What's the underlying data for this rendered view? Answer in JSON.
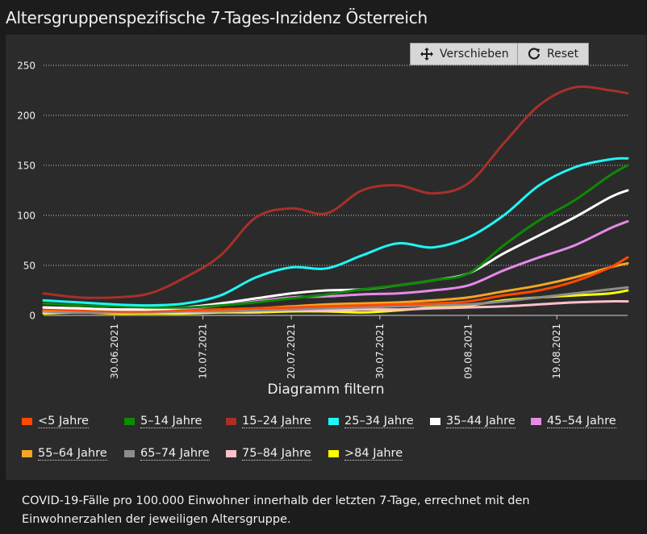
{
  "page": {
    "title": "Altersgruppenspezifische 7-Tages-Inzidenz Österreich"
  },
  "toolbar": {
    "move_label": "Verschieben",
    "reset_label": "Reset"
  },
  "filter": {
    "title": "Diagramm filtern"
  },
  "footer": {
    "note": "COVID-19-Fälle pro 100.000 Einwohner innerhalb der letzten 7-Tage, errechnet mit den Einwohnerzahlen der jeweiligen Altersgruppe."
  },
  "chart_data": {
    "type": "line",
    "x": [
      "2021-06-22",
      "2021-06-26",
      "2021-06-30",
      "2021-07-04",
      "2021-07-08",
      "2021-07-12",
      "2021-07-16",
      "2021-07-20",
      "2021-07-24",
      "2021-07-28",
      "2021-08-01",
      "2021-08-05",
      "2021-08-09",
      "2021-08-13",
      "2021-08-17",
      "2021-08-21",
      "2021-08-25",
      "2021-08-27"
    ],
    "x_tick_labels": [
      "30.06.2021",
      "10.07.2021",
      "20.07.2021",
      "30.07.2021",
      "09.08.2021",
      "19.08.2021"
    ],
    "x_tick_dates": [
      "2021-06-30",
      "2021-07-10",
      "2021-07-20",
      "2021-07-30",
      "2021-08-09",
      "2021-08-19"
    ],
    "ylim": [
      0,
      250
    ],
    "y_ticks": [
      0,
      50,
      100,
      150,
      200,
      250
    ],
    "grid": true,
    "legend_position": "bottom",
    "series": [
      {
        "name": "<5 Jahre",
        "color": "#ff4a00",
        "values": [
          6,
          5,
          4,
          4,
          5,
          6,
          7,
          8,
          9,
          10,
          11,
          12,
          14,
          20,
          25,
          34,
          48,
          58
        ]
      },
      {
        "name": "5–14 Jahre",
        "color": "#0c8a00",
        "values": [
          12,
          10,
          9,
          8,
          8,
          10,
          13,
          17,
          21,
          26,
          30,
          35,
          42,
          70,
          95,
          115,
          140,
          150
        ]
      },
      {
        "name": "15–24 Jahre",
        "color": "#a8302a",
        "values": [
          22,
          18,
          18,
          22,
          38,
          60,
          98,
          107,
          102,
          125,
          130,
          122,
          132,
          172,
          210,
          228,
          225,
          222
        ]
      },
      {
        "name": "25–34 Jahre",
        "color": "#20f5f5",
        "values": [
          15,
          13,
          11,
          10,
          12,
          20,
          38,
          48,
          47,
          60,
          72,
          68,
          78,
          100,
          130,
          148,
          156,
          157
        ]
      },
      {
        "name": "35–44 Jahre",
        "color": "#ffffff",
        "values": [
          8,
          7,
          6,
          6,
          8,
          12,
          17,
          22,
          25,
          26,
          30,
          35,
          42,
          62,
          80,
          98,
          118,
          125
        ]
      },
      {
        "name": "45–54 Jahre",
        "color": "#e58ae8",
        "values": [
          8,
          7,
          6,
          6,
          7,
          10,
          14,
          18,
          19,
          21,
          22,
          25,
          30,
          45,
          58,
          70,
          87,
          94
        ]
      },
      {
        "name": "55–64 Jahre",
        "color": "#f5a623",
        "values": [
          5,
          5,
          4,
          4,
          5,
          6,
          7,
          9,
          11,
          12,
          13,
          15,
          18,
          24,
          30,
          38,
          48,
          52
        ]
      },
      {
        "name": "65–74 Jahre",
        "color": "#8c8c8c",
        "values": [
          4,
          3,
          3,
          3,
          4,
          4,
          5,
          6,
          7,
          8,
          9,
          10,
          11,
          14,
          18,
          22,
          26,
          28
        ]
      },
      {
        "name": "75–84 Jahre",
        "color": "#ffc0cb",
        "values": [
          3,
          3,
          3,
          3,
          3,
          4,
          4,
          5,
          5,
          6,
          6,
          7,
          8,
          9,
          11,
          13,
          14,
          14
        ]
      },
      {
        "name": ">84 Jahre",
        "color": "#ffff00",
        "values": [
          2,
          3,
          2,
          2,
          2,
          3,
          3,
          4,
          4,
          3,
          5,
          8,
          10,
          15,
          18,
          20,
          22,
          25
        ]
      }
    ]
  }
}
